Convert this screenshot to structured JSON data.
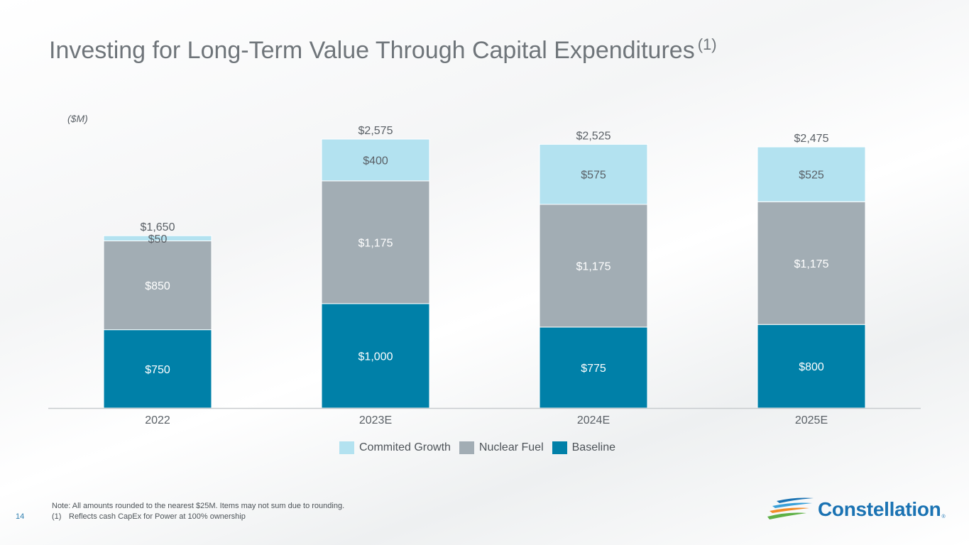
{
  "slide": {
    "title": "Investing for Long-Term Value Through Capital Expenditures",
    "title_footnote": "(1)",
    "unit_label": "($M)",
    "note": "Note: All amounts rounded to the nearest $25M. Items may not sum due to rounding.",
    "footnote_number": "(1)",
    "footnote_text": "Reflects cash CapEx for Power at 100% ownership",
    "page_number": "14",
    "logo_text": "Constellation",
    "logo_mark": "®"
  },
  "chart_data": {
    "type": "bar",
    "stacked": true,
    "categories": [
      "2022",
      "2023E",
      "2024E",
      "2025E"
    ],
    "series": [
      {
        "name": "Baseline",
        "values": [
          750,
          1000,
          775,
          800
        ],
        "labels": [
          "$750",
          "$1,000",
          "$775",
          "$800"
        ],
        "color": "#0080a8",
        "label_color": "#ffffff"
      },
      {
        "name": "Nuclear Fuel",
        "values": [
          850,
          1175,
          1175,
          1175
        ],
        "labels": [
          "$850",
          "$1,175",
          "$1,175",
          "$1,175"
        ],
        "color": "#a2adb4",
        "label_color": "#ffffff"
      },
      {
        "name": "Commited Growth",
        "values": [
          50,
          400,
          575,
          525
        ],
        "labels": [
          "$50",
          "$400",
          "$575",
          "$525"
        ],
        "color": "#b3e2f0",
        "label_color": "#5a6066"
      }
    ],
    "totals": [
      "$1,650",
      "$2,575",
      "$2,525",
      "$2,475"
    ],
    "legend": [
      "Commited Growth",
      "Nuclear Fuel",
      "Baseline"
    ],
    "legend_position": "bottom",
    "ylim": [
      0,
      2575
    ],
    "grid": false
  }
}
